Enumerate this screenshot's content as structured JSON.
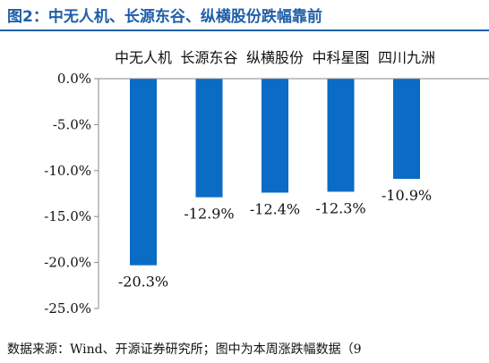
{
  "figure": {
    "title": "图2：中无人机、长源东谷、纵横股份跌幅靠前",
    "source": "数据来源：Wind、开源证券研究所；图中为本周涨跌幅数据（9"
  },
  "colors": {
    "bar": "#0a6cc4",
    "title": "#1f5fa8",
    "axis": "#888888",
    "text": "#111111"
  },
  "chart_data": {
    "type": "bar",
    "title": "图2：中无人机、长源东谷、纵横股份跌幅靠前",
    "xlabel": "",
    "ylabel": "",
    "categories": [
      "中无人机",
      "长源东谷",
      "纵横股份",
      "中科星图",
      "四川九洲"
    ],
    "values": [
      -20.3,
      -12.9,
      -12.4,
      -12.3,
      -10.9
    ],
    "value_labels": [
      "-20.3%",
      "-12.9%",
      "-12.4%",
      "-12.3%",
      "-10.9%"
    ],
    "ylim": [
      -25.0,
      0.0
    ],
    "yticks": [
      0.0,
      -5.0,
      -10.0,
      -15.0,
      -20.0,
      -25.0
    ],
    "ytick_labels": [
      "0.0%",
      "-5.0%",
      "-10.0%",
      "-15.0%",
      "-20.0%",
      "-25.0%"
    ],
    "category_axis_position": "top",
    "grid": false,
    "legend": "none"
  }
}
